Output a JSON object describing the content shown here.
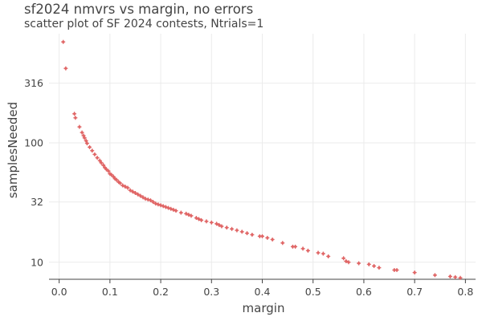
{
  "chart_data": {
    "type": "scatter",
    "title": "sf2024 nmvrs vs margin, no errors",
    "subtitle": "scatter plot of SF 2024 contests, Ntrials=1",
    "xlabel": "margin",
    "ylabel": "samplesNeeded",
    "xlim": [
      -0.02,
      0.82
    ],
    "ylim": [
      7.2,
      820
    ],
    "y_scale": "log",
    "grid": true,
    "legend": "none",
    "x_ticks": [
      {
        "value": 0.0,
        "label": "0.0"
      },
      {
        "value": 0.1,
        "label": "0.1"
      },
      {
        "value": 0.2,
        "label": "0.2"
      },
      {
        "value": 0.3,
        "label": "0.3"
      },
      {
        "value": 0.4,
        "label": "0.4"
      },
      {
        "value": 0.5,
        "label": "0.5"
      },
      {
        "value": 0.6,
        "label": "0.6"
      },
      {
        "value": 0.7,
        "label": "0.7"
      },
      {
        "value": 0.8,
        "label": "0.8"
      }
    ],
    "y_ticks": [
      {
        "value": 10,
        "label": "10"
      },
      {
        "value": 32,
        "label": "32"
      },
      {
        "value": 100,
        "label": "100"
      },
      {
        "value": 316,
        "label": "316"
      }
    ],
    "marker_color": "#e06666",
    "points": [
      {
        "x": 0.008,
        "y": 700
      },
      {
        "x": 0.013,
        "y": 420
      },
      {
        "x": 0.03,
        "y": 175
      },
      {
        "x": 0.032,
        "y": 162
      },
      {
        "x": 0.04,
        "y": 136
      },
      {
        "x": 0.045,
        "y": 122
      },
      {
        "x": 0.048,
        "y": 115
      },
      {
        "x": 0.05,
        "y": 110
      },
      {
        "x": 0.053,
        "y": 104
      },
      {
        "x": 0.055,
        "y": 99
      },
      {
        "x": 0.06,
        "y": 92
      },
      {
        "x": 0.065,
        "y": 86
      },
      {
        "x": 0.07,
        "y": 80
      },
      {
        "x": 0.075,
        "y": 75
      },
      {
        "x": 0.08,
        "y": 71
      },
      {
        "x": 0.083,
        "y": 68
      },
      {
        "x": 0.087,
        "y": 65
      },
      {
        "x": 0.09,
        "y": 62
      },
      {
        "x": 0.093,
        "y": 60
      },
      {
        "x": 0.097,
        "y": 58
      },
      {
        "x": 0.1,
        "y": 55
      },
      {
        "x": 0.103,
        "y": 54
      },
      {
        "x": 0.107,
        "y": 52
      },
      {
        "x": 0.11,
        "y": 50
      },
      {
        "x": 0.113,
        "y": 49
      },
      {
        "x": 0.117,
        "y": 47
      },
      {
        "x": 0.12,
        "y": 46
      },
      {
        "x": 0.125,
        "y": 44
      },
      {
        "x": 0.13,
        "y": 43
      },
      {
        "x": 0.135,
        "y": 42
      },
      {
        "x": 0.14,
        "y": 40
      },
      {
        "x": 0.145,
        "y": 39
      },
      {
        "x": 0.15,
        "y": 38
      },
      {
        "x": 0.155,
        "y": 37
      },
      {
        "x": 0.16,
        "y": 36
      },
      {
        "x": 0.165,
        "y": 35
      },
      {
        "x": 0.17,
        "y": 34
      },
      {
        "x": 0.175,
        "y": 33.5
      },
      {
        "x": 0.18,
        "y": 33
      },
      {
        "x": 0.185,
        "y": 32
      },
      {
        "x": 0.19,
        "y": 31
      },
      {
        "x": 0.195,
        "y": 30.5
      },
      {
        "x": 0.2,
        "y": 30
      },
      {
        "x": 0.205,
        "y": 29.5
      },
      {
        "x": 0.21,
        "y": 29
      },
      {
        "x": 0.215,
        "y": 28.5
      },
      {
        "x": 0.22,
        "y": 28
      },
      {
        "x": 0.225,
        "y": 27.5
      },
      {
        "x": 0.23,
        "y": 27
      },
      {
        "x": 0.24,
        "y": 26
      },
      {
        "x": 0.25,
        "y": 25.5
      },
      {
        "x": 0.255,
        "y": 25
      },
      {
        "x": 0.26,
        "y": 24.5
      },
      {
        "x": 0.27,
        "y": 23.5
      },
      {
        "x": 0.275,
        "y": 23
      },
      {
        "x": 0.28,
        "y": 22.5
      },
      {
        "x": 0.29,
        "y": 22
      },
      {
        "x": 0.3,
        "y": 21.5
      },
      {
        "x": 0.31,
        "y": 21
      },
      {
        "x": 0.315,
        "y": 20.5
      },
      {
        "x": 0.32,
        "y": 20
      },
      {
        "x": 0.33,
        "y": 19.5
      },
      {
        "x": 0.34,
        "y": 19
      },
      {
        "x": 0.35,
        "y": 18.5
      },
      {
        "x": 0.36,
        "y": 18
      },
      {
        "x": 0.37,
        "y": 17.5
      },
      {
        "x": 0.38,
        "y": 17
      },
      {
        "x": 0.395,
        "y": 16.5
      },
      {
        "x": 0.4,
        "y": 16.5
      },
      {
        "x": 0.41,
        "y": 16
      },
      {
        "x": 0.42,
        "y": 15.5
      },
      {
        "x": 0.44,
        "y": 14.5
      },
      {
        "x": 0.46,
        "y": 13.5
      },
      {
        "x": 0.465,
        "y": 13.5
      },
      {
        "x": 0.48,
        "y": 13
      },
      {
        "x": 0.49,
        "y": 12.5
      },
      {
        "x": 0.51,
        "y": 12
      },
      {
        "x": 0.52,
        "y": 11.8
      },
      {
        "x": 0.53,
        "y": 11.2
      },
      {
        "x": 0.56,
        "y": 10.8
      },
      {
        "x": 0.565,
        "y": 10.2
      },
      {
        "x": 0.57,
        "y": 10
      },
      {
        "x": 0.59,
        "y": 9.8
      },
      {
        "x": 0.61,
        "y": 9.6
      },
      {
        "x": 0.62,
        "y": 9.3
      },
      {
        "x": 0.63,
        "y": 9
      },
      {
        "x": 0.66,
        "y": 8.6
      },
      {
        "x": 0.665,
        "y": 8.6
      },
      {
        "x": 0.7,
        "y": 8.2
      },
      {
        "x": 0.74,
        "y": 7.8
      },
      {
        "x": 0.77,
        "y": 7.6
      },
      {
        "x": 0.78,
        "y": 7.5
      },
      {
        "x": 0.79,
        "y": 7.4
      }
    ]
  }
}
